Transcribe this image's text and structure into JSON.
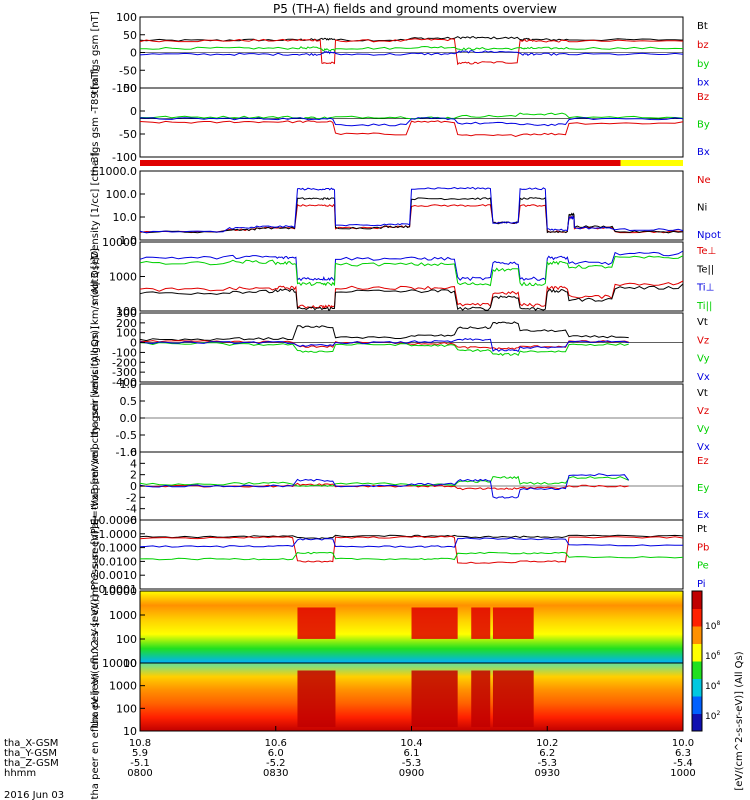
{
  "title": "P5 (TH-A) fields and ground moments overview",
  "date_label": "2016 Jun 03",
  "footer_rows": [
    {
      "label": "tha_X-GSM",
      "values": [
        "10.8",
        "10.6",
        "10.4",
        "10.2",
        "10.0"
      ]
    },
    {
      "label": "tha_Y-GSM",
      "values": [
        "5.9",
        "6.0",
        "6.1",
        "6.2",
        "6.3"
      ]
    },
    {
      "label": "tha_Z-GSM",
      "values": [
        "-5.1",
        "-5.2",
        "-5.3",
        "-5.3",
        "-5.4"
      ]
    },
    {
      "label": "hhmm",
      "values": [
        "0800",
        "0830",
        "0900",
        "0930",
        "1000"
      ]
    }
  ],
  "colorbar": {
    "label": "[eV/(cm^2-s-sr-eV)] (All Qs)",
    "ticks": [
      "10^2",
      "10^4",
      "10^6",
      "10^8"
    ],
    "colors": [
      "#1010b0",
      "#0060ff",
      "#00c8e0",
      "#20e020",
      "#ffff00",
      "#ff9000",
      "#ff2000",
      "#c00000"
    ]
  },
  "colors": {
    "black": "#000000",
    "red": "#e00000",
    "green": "#00d000",
    "blue": "#0000e0",
    "yellow": "#ffff00"
  },
  "chart_data": [
    {
      "type": "line",
      "ylabel": "tha fgs gsm [nT]",
      "ylim": [
        -100,
        100
      ],
      "yticks": [
        "100",
        "50",
        "0",
        "-50",
        "-100"
      ],
      "x": [
        8.0,
        8.33,
        8.58,
        8.67,
        8.72,
        9.0,
        9.17,
        9.25,
        9.4,
        9.45,
        9.58,
        10.0
      ],
      "series": [
        {
          "name": "Bt",
          "color": "#000000",
          "values": [
            34,
            35,
            36,
            38,
            35,
            40,
            42,
            41,
            37,
            36,
            36,
            35
          ]
        },
        {
          "name": "bz",
          "color": "#e00000",
          "values": [
            33,
            34,
            35,
            -30,
            33,
            36,
            -30,
            -28,
            34,
            32,
            32,
            32
          ]
        },
        {
          "name": "by",
          "color": "#00d000",
          "values": [
            12,
            12,
            13,
            8,
            12,
            15,
            10,
            11,
            12,
            12,
            12,
            11
          ]
        },
        {
          "name": "bx",
          "color": "#0000e0",
          "values": [
            -5,
            -5,
            -5,
            0,
            -5,
            -4,
            2,
            2,
            -5,
            -5,
            -5,
            -5
          ]
        }
      ]
    },
    {
      "type": "line",
      "ylabel": "tha fgs gsm -T89 [nT]",
      "ylim": [
        -125,
        100
      ],
      "yticks": [
        "50",
        "0",
        "-50",
        "-100"
      ],
      "x": [
        8.0,
        8.33,
        8.58,
        8.72,
        9.0,
        9.17,
        9.4,
        9.58,
        10.0
      ],
      "series": [
        {
          "name": "Bz",
          "color": "#e00000",
          "values": [
            -12,
            -10,
            -10,
            -50,
            -10,
            -55,
            -50,
            -15,
            -10
          ]
        },
        {
          "name": "By",
          "color": "#00d000",
          "values": [
            5,
            5,
            3,
            5,
            3,
            8,
            15,
            5,
            2
          ]
        },
        {
          "name": "Bx",
          "color": "#0000e0",
          "values": [
            0,
            0,
            0,
            -20,
            0,
            -15,
            -20,
            0,
            0
          ]
        }
      ]
    },
    {
      "type": "line",
      "ylabel": "Density [1/cc] [cm-3]",
      "yscale": "log",
      "ylim": [
        0.1,
        1000
      ],
      "yticks": [
        "1000.0",
        "100.0",
        "10.0",
        "1.0"
      ],
      "x": [
        8.0,
        8.33,
        8.43,
        8.58,
        8.67,
        8.72,
        8.9,
        9.0,
        9.17,
        9.3,
        9.4,
        9.5,
        9.58,
        9.6,
        9.75,
        10.0
      ],
      "series": [
        {
          "name": "Ne",
          "color": "#e00000",
          "values": [
            0.3,
            0.4,
            0.5,
            10,
            10,
            0.5,
            0.6,
            10,
            10,
            1,
            10,
            0.3,
            2,
            0.5,
            0.3,
            0.3
          ]
        },
        {
          "name": "Ni",
          "color": "#000000",
          "values": [
            0.3,
            0.4,
            0.5,
            25,
            25,
            0.5,
            0.6,
            25,
            25,
            1,
            25,
            0.3,
            3,
            0.6,
            0.3,
            0.3
          ]
        },
        {
          "name": "Npot",
          "color": "#0000e0",
          "values": [
            0.3,
            0.5,
            0.6,
            90,
            90,
            0.7,
            0.8,
            100,
            100,
            1,
            95,
            0.4,
            2,
            0.5,
            0.4,
            0.35
          ]
        }
      ]
    },
    {
      "type": "line",
      "ylabel": "moqt3 [eV]",
      "yscale": "log",
      "ylim": [
        50,
        10000
      ],
      "yticks": [
        "10000",
        "1000",
        "100"
      ],
      "x": [
        8.0,
        8.33,
        8.5,
        8.58,
        8.67,
        8.72,
        9.0,
        9.17,
        9.3,
        9.4,
        9.5,
        9.58,
        9.75,
        10.0
      ],
      "series": [
        {
          "name": "Te⊥",
          "color": "#e00000",
          "values": [
            260,
            280,
            300,
            70,
            70,
            300,
            300,
            80,
            200,
            80,
            300,
            150,
            400,
            500
          ]
        },
        {
          "name": "Te||",
          "color": "#000000",
          "values": [
            200,
            220,
            240,
            60,
            60,
            230,
            230,
            60,
            150,
            60,
            230,
            120,
            300,
            400
          ]
        },
        {
          "name": "Ti⊥",
          "color": "#0000e0",
          "values": [
            3000,
            3200,
            3000,
            600,
            600,
            2800,
            2800,
            600,
            2000,
            600,
            3000,
            2000,
            4000,
            5000
          ]
        },
        {
          "name": "Ti||",
          "color": "#00d000",
          "values": [
            2000,
            2200,
            2000,
            400,
            400,
            1800,
            1800,
            400,
            1200,
            400,
            2000,
            1500,
            3000,
            3500
          ]
        }
      ]
    },
    {
      "type": "line",
      "ylabel": "tha peir velocity gsm [km/s (All Qs)]",
      "ylim": [
        -400,
        300
      ],
      "yticks": [
        "300",
        "200",
        "100",
        "0",
        "-100",
        "-200",
        "-300",
        "-400"
      ],
      "x": [
        8.0,
        8.33,
        8.58,
        8.72,
        9.0,
        9.17,
        9.3,
        9.4,
        9.58,
        9.8
      ],
      "series": [
        {
          "name": "Vt",
          "color": "#000000",
          "values": [
            30,
            40,
            160,
            50,
            70,
            150,
            200,
            120,
            60,
            50
          ]
        },
        {
          "name": "Vz",
          "color": "#e00000",
          "values": [
            10,
            5,
            -40,
            0,
            -10,
            -50,
            -60,
            -40,
            10,
            5
          ]
        },
        {
          "name": "Vy",
          "color": "#00d000",
          "values": [
            -10,
            -20,
            -90,
            -20,
            -30,
            -80,
            -120,
            -90,
            -20,
            -15
          ]
        },
        {
          "name": "Vx",
          "color": "#0000e0",
          "values": [
            0,
            0,
            -30,
            0,
            10,
            30,
            -80,
            -50,
            10,
            0
          ]
        }
      ]
    },
    {
      "type": "line",
      "ylabel": "tha peer velocity gsm [km/s (All Qs)]",
      "ylim": [
        -1,
        1
      ],
      "yticks": [
        "1.0",
        "0.5",
        "0.0",
        "-0.5",
        "-1.0"
      ],
      "x": [],
      "series": [
        {
          "name": "Vt",
          "color": "#000000",
          "values": []
        },
        {
          "name": "Vz",
          "color": "#e00000",
          "values": []
        },
        {
          "name": "Vy",
          "color": "#00d000",
          "values": []
        },
        {
          "name": "Vx",
          "color": "#0000e0",
          "values": []
        }
      ]
    },
    {
      "type": "line",
      "ylabel": "E=-VxB [mV/m]",
      "ylim": [
        -6,
        6
      ],
      "yticks": [
        "6",
        "4",
        "2",
        "0",
        "-2",
        "-4",
        "-6"
      ],
      "x": [
        8.0,
        8.33,
        8.58,
        8.72,
        9.0,
        9.17,
        9.3,
        9.4,
        9.58,
        9.8
      ],
      "series": [
        {
          "name": "Ez",
          "color": "#e00000",
          "values": [
            0,
            0,
            0.3,
            0,
            0,
            -0.5,
            -0.5,
            -0.3,
            0,
            0
          ]
        },
        {
          "name": "Ey",
          "color": "#00d000",
          "values": [
            0.3,
            0.5,
            0,
            0.4,
            0.2,
            0.8,
            1.5,
            0.5,
            1.5,
            1.0
          ]
        },
        {
          "name": "Ex",
          "color": "#0000e0",
          "values": [
            0,
            0,
            1.0,
            0,
            0.3,
            1.0,
            -2.0,
            -0.5,
            2.0,
            1.0
          ]
        }
      ]
    },
    {
      "type": "line",
      "ylabel": "Pressure [nPa]",
      "yscale": "log",
      "ylim": [
        0.0001,
        10
      ],
      "yticks": [
        "10.0000",
        "1.0000",
        "0.1000",
        "0.0100",
        "0.0010",
        "0.0001"
      ],
      "x": [
        8.0,
        8.33,
        8.58,
        8.72,
        9.0,
        9.17,
        9.4,
        9.58,
        10.0
      ],
      "series": [
        {
          "name": "Pt",
          "color": "#000000",
          "values": [
            0.6,
            0.65,
            0.5,
            0.7,
            0.7,
            0.6,
            0.6,
            0.7,
            0.7
          ]
        },
        {
          "name": "Pb",
          "color": "#e00000",
          "values": [
            0.5,
            0.55,
            0.01,
            0.55,
            0.6,
            0.008,
            0.01,
            0.55,
            0.5
          ]
        },
        {
          "name": "Pe",
          "color": "#00d000",
          "values": [
            0.015,
            0.015,
            0.04,
            0.015,
            0.015,
            0.04,
            0.04,
            0.02,
            0.02
          ]
        },
        {
          "name": "Pi",
          "color": "#0000e0",
          "values": [
            0.12,
            0.13,
            0.4,
            0.12,
            0.12,
            0.45,
            0.4,
            0.15,
            0.15
          ]
        }
      ]
    },
    {
      "type": "heatmap",
      "ylabel": "tha peir en eflux eV [eV/(cm^2-s-sr-eV)]",
      "yscale": "log",
      "ylim": [
        5,
        20000
      ],
      "yticks": [
        "10000",
        "1000",
        "100",
        "10"
      ]
    },
    {
      "type": "heatmap",
      "ylabel": "tha peer en eflux eV [eV/(cm^2-s-sr-eV)]",
      "yscale": "log",
      "ylim": [
        5,
        20000
      ],
      "yticks": [
        "10000",
        "1000",
        "100",
        "10"
      ]
    }
  ]
}
